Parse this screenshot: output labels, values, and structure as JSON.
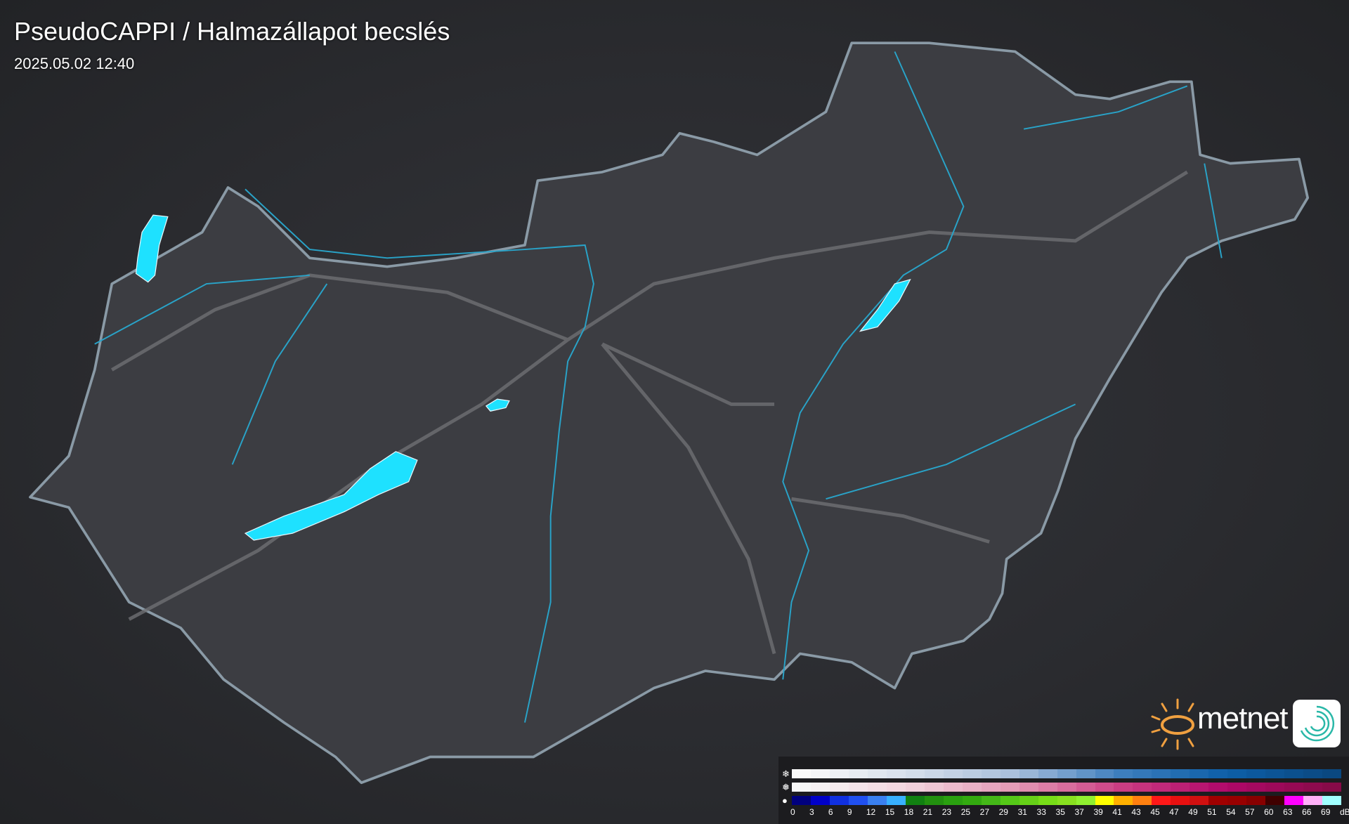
{
  "header": {
    "title": "PseudoCAPPI  / Halmazállapot becslés",
    "timestamp": "2025.05.02 12:40"
  },
  "map": {
    "land_color": "#3c3d42",
    "border_color": "#8a9aa6",
    "river_color": "#29a3c8",
    "road_color": "#6e6f73",
    "lake_color": "#1ee1ff"
  },
  "logo": {
    "text": "metnet",
    "sun_color": "#f0a040",
    "app_icon": "spiral-logo-icon"
  },
  "legend": {
    "rows": [
      {
        "icon": "snowflake-icon",
        "glyph": "❄",
        "stops": [
          "#fafafa",
          "#d6dfeb",
          "#a9bfdb",
          "#3f7fbe",
          "#0d5fa8",
          "#0a4880"
        ]
      },
      {
        "icon": "sleet-icon",
        "glyph": "❅",
        "stops": [
          "#f7f7f7",
          "#f2d4de",
          "#e39ab6",
          "#cc3f84",
          "#b0086a",
          "#870a48"
        ]
      },
      {
        "icon": "raindrop-icon",
        "glyph": "●",
        "colors": [
          "#00007e",
          "#0000c8",
          "#1030e0",
          "#2050f0",
          "#3a80f0",
          "#38b0ff",
          "#118011",
          "#22900f",
          "#2aa010",
          "#33aa10",
          "#44b818",
          "#55c818",
          "#66d018",
          "#77dd18",
          "#88e020",
          "#90f030",
          "#ffff00",
          "#ffb000",
          "#ff8010",
          "#ff1818",
          "#e81010",
          "#d01010",
          "#a00000",
          "#980000",
          "#880000",
          "#400000",
          "#ff00ff",
          "#ffb0f8",
          "#a0ffff"
        ]
      }
    ],
    "labels": [
      "0",
      "3",
      "6",
      "9",
      "12",
      "15",
      "18",
      "21",
      "23",
      "25",
      "27",
      "29",
      "31",
      "33",
      "35",
      "37",
      "39",
      "41",
      "43",
      "45",
      "47",
      "49",
      "51",
      "54",
      "57",
      "60",
      "63",
      "66",
      "69"
    ],
    "unit": "dBZ"
  }
}
